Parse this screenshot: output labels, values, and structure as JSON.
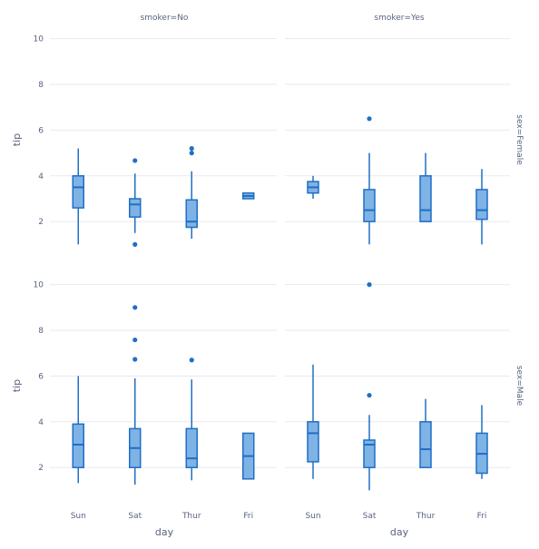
{
  "chart_data": {
    "type": "box",
    "facet_col_labels": [
      "smoker=No",
      "smoker=Yes"
    ],
    "facet_row_labels": [
      "sex=Female",
      "sex=Male"
    ],
    "x_axis": {
      "title": "day",
      "categories": [
        "Sun",
        "Sat",
        "Thur",
        "Fri"
      ]
    },
    "y_axis": {
      "title": "tip",
      "ylim": [
        0.5,
        10.5
      ],
      "ticks": [
        2,
        4,
        6,
        8,
        10
      ]
    },
    "grid": true,
    "color": "#1f6fc5",
    "fill_color": "#7fb2e5",
    "panels": [
      {
        "sex": "Female",
        "smoker": "No",
        "boxes": [
          {
            "day": "Sun",
            "min": 1.0,
            "q1": 2.6,
            "median": 3.5,
            "q3": 4.0,
            "max": 5.2,
            "outliers": []
          },
          {
            "day": "Sat",
            "min": 1.5,
            "q1": 2.2,
            "median": 2.75,
            "q3": 3.0,
            "max": 4.1,
            "outliers": [
              4.67,
              1.0
            ]
          },
          {
            "day": "Thur",
            "min": 1.25,
            "q1": 1.75,
            "median": 2.0,
            "q3": 2.95,
            "max": 4.2,
            "outliers": [
              5.0,
              5.2
            ]
          },
          {
            "day": "Fri",
            "min": 3.0,
            "q1": 3.0,
            "median": 3.12,
            "q3": 3.25,
            "max": 3.25,
            "outliers": []
          }
        ]
      },
      {
        "sex": "Female",
        "smoker": "Yes",
        "boxes": [
          {
            "day": "Sun",
            "min": 3.0,
            "q1": 3.25,
            "median": 3.5,
            "q3": 3.75,
            "max": 4.0,
            "outliers": []
          },
          {
            "day": "Sat",
            "min": 1.0,
            "q1": 2.0,
            "median": 2.5,
            "q3": 3.4,
            "max": 5.0,
            "outliers": [
              6.5
            ]
          },
          {
            "day": "Thur",
            "min": 2.0,
            "q1": 2.0,
            "median": 2.5,
            "q3": 4.0,
            "max": 5.0,
            "outliers": []
          },
          {
            "day": "Fri",
            "min": 1.0,
            "q1": 2.1,
            "median": 2.5,
            "q3": 3.4,
            "max": 4.3,
            "outliers": []
          }
        ]
      },
      {
        "sex": "Male",
        "smoker": "No",
        "boxes": [
          {
            "day": "Sun",
            "min": 1.32,
            "q1": 2.0,
            "median": 3.0,
            "q3": 3.9,
            "max": 6.0,
            "outliers": []
          },
          {
            "day": "Sat",
            "min": 1.25,
            "q1": 2.0,
            "median": 2.85,
            "q3": 3.7,
            "max": 5.9,
            "outliers": [
              9.0,
              7.58,
              6.73
            ]
          },
          {
            "day": "Thur",
            "min": 1.44,
            "q1": 2.0,
            "median": 2.4,
            "q3": 3.7,
            "max": 5.85,
            "outliers": [
              6.7
            ]
          },
          {
            "day": "Fri",
            "min": 1.5,
            "q1": 1.5,
            "median": 2.5,
            "q3": 3.5,
            "max": 3.5,
            "outliers": []
          }
        ]
      },
      {
        "sex": "Male",
        "smoker": "Yes",
        "boxes": [
          {
            "day": "Sun",
            "min": 1.5,
            "q1": 2.25,
            "median": 3.5,
            "q3": 4.0,
            "max": 6.5,
            "outliers": []
          },
          {
            "day": "Sat",
            "min": 1.0,
            "q1": 2.0,
            "median": 3.0,
            "q3": 3.2,
            "max": 4.3,
            "outliers": [
              10.0,
              5.16
            ]
          },
          {
            "day": "Thur",
            "min": 2.0,
            "q1": 2.0,
            "median": 2.8,
            "q3": 4.0,
            "max": 5.0,
            "outliers": []
          },
          {
            "day": "Fri",
            "min": 1.5,
            "q1": 1.75,
            "median": 2.6,
            "q3": 3.5,
            "max": 4.73,
            "outliers": []
          }
        ]
      }
    ]
  }
}
